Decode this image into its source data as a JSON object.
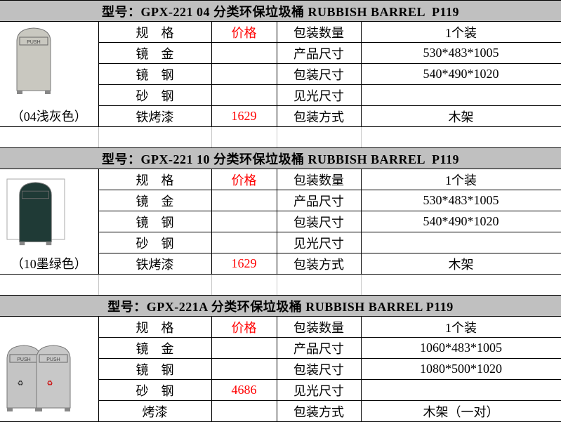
{
  "sections": [
    {
      "title": "型号：GPX-221 04 分类环保垃圾桶 RUBBISH BARREL  P119",
      "image": "grey-single-bin",
      "caption": "（04浅灰色）",
      "rows": [
        [
          "规　格",
          "价格",
          "包装数量",
          "1个装"
        ],
        [
          "镜　金",
          "",
          "产品尺寸",
          "530*483*1005"
        ],
        [
          "镜　钢",
          "",
          "包装尺寸",
          "540*490*1020"
        ],
        [
          "砂　钢",
          "",
          "见光尺寸",
          ""
        ],
        [
          "铁烤漆",
          "1629",
          "包装方式",
          "木架"
        ]
      ]
    },
    {
      "title": "型号：GPX-221 10 分类环保垃圾桶 RUBBISH BARREL  P119",
      "image": "dark-green-single-bin",
      "caption": "（10墨绿色）",
      "rows": [
        [
          "规　格",
          "价格",
          "包装数量",
          "1个装"
        ],
        [
          "镜　金",
          "",
          "产品尺寸",
          "530*483*1005"
        ],
        [
          "镜　钢",
          "",
          "包装尺寸",
          "540*490*1020"
        ],
        [
          "砂　钢",
          "",
          "见光尺寸",
          ""
        ],
        [
          "铁烤漆",
          "1629",
          "包装方式",
          "木架"
        ]
      ]
    },
    {
      "title": "型号：GPX-221A 分类环保垃圾桶 RUBBISH BARREL P119",
      "image": "double-steel-bins",
      "caption": "",
      "rows": [
        [
          "规　格",
          "价格",
          "包装数量",
          "1个装"
        ],
        [
          "镜　金",
          "",
          "产品尺寸",
          "1060*483*1005"
        ],
        [
          "镜　钢",
          "",
          "包装尺寸",
          "1080*500*1020"
        ],
        [
          "砂　钢",
          "4686",
          "见光尺寸",
          ""
        ],
        [
          "烤漆",
          "",
          "包装方式",
          "木架（一对）"
        ]
      ]
    }
  ],
  "bin_labels": {
    "push": "PUSH"
  },
  "colors": {
    "header_bg": "#c0c0c0",
    "price": "#ff0000"
  }
}
